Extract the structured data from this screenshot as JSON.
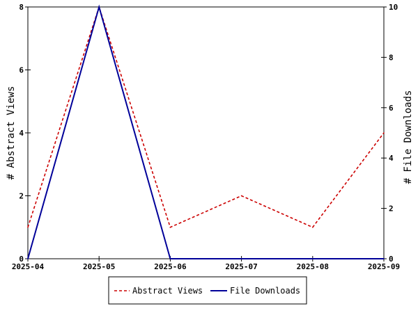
{
  "chart_data": {
    "type": "line",
    "categories": [
      "2025-04",
      "2025-05",
      "2025-06",
      "2025-07",
      "2025-08",
      "2025-09"
    ],
    "left_axis": {
      "label": "# Abstract Views",
      "ylim": [
        0,
        8
      ],
      "ticks": [
        0,
        2,
        4,
        6,
        8
      ]
    },
    "right_axis": {
      "label": "# File Downloads",
      "ylim": [
        0,
        10
      ],
      "ticks": [
        0,
        2,
        4,
        6,
        8,
        10
      ]
    },
    "series": [
      {
        "name": "Abstract Views",
        "axis": "left",
        "values": [
          1,
          8,
          1,
          2,
          1,
          4
        ],
        "color": "#cc0000",
        "style": "dashed"
      },
      {
        "name": "File Downloads",
        "axis": "right",
        "values": [
          0,
          10,
          0,
          0,
          0,
          0
        ],
        "color": "#000099",
        "style": "solid"
      }
    ],
    "grid": false,
    "legend_position": "bottom-center"
  }
}
